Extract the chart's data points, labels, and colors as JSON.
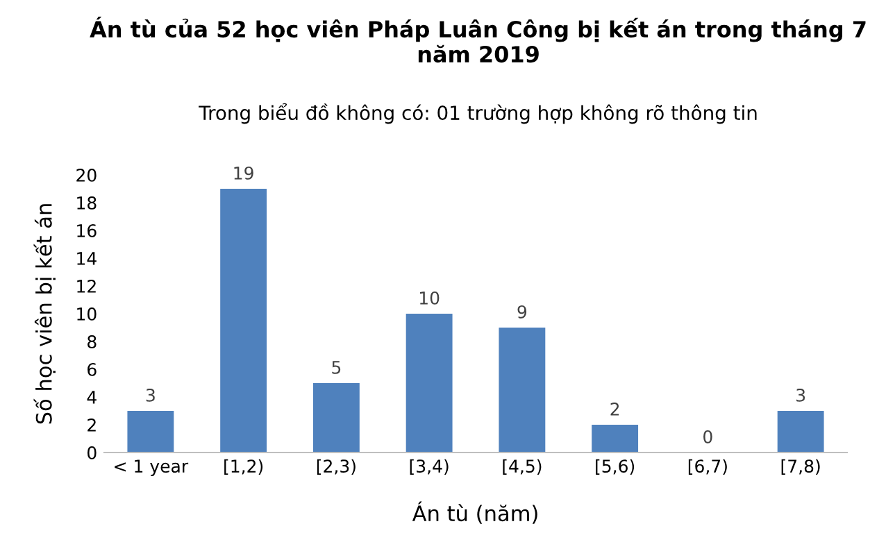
{
  "chart_data": {
    "type": "bar",
    "title": "Án tù của 52 học viên Pháp Luân Công bị kết án trong tháng 7 năm 2019",
    "subtitle": "Trong biểu đồ không có: 01 trường hợp không rõ thông tin",
    "xlabel": "Án tù (năm)",
    "ylabel": "Số học viên bị kết án",
    "categories": [
      "< 1 year",
      "[1,2)",
      "[2,3)",
      "[3,4)",
      "[4,5)",
      "[5,6)",
      "[6,7)",
      "[7,8)"
    ],
    "values": [
      3,
      19,
      5,
      10,
      9,
      2,
      0,
      3
    ],
    "color": "#4f81bd",
    "ylim": [
      0,
      20
    ],
    "yticks": [
      0,
      2,
      4,
      6,
      8,
      10,
      12,
      14,
      16,
      18,
      20
    ],
    "grid": false,
    "data_labels": true
  }
}
